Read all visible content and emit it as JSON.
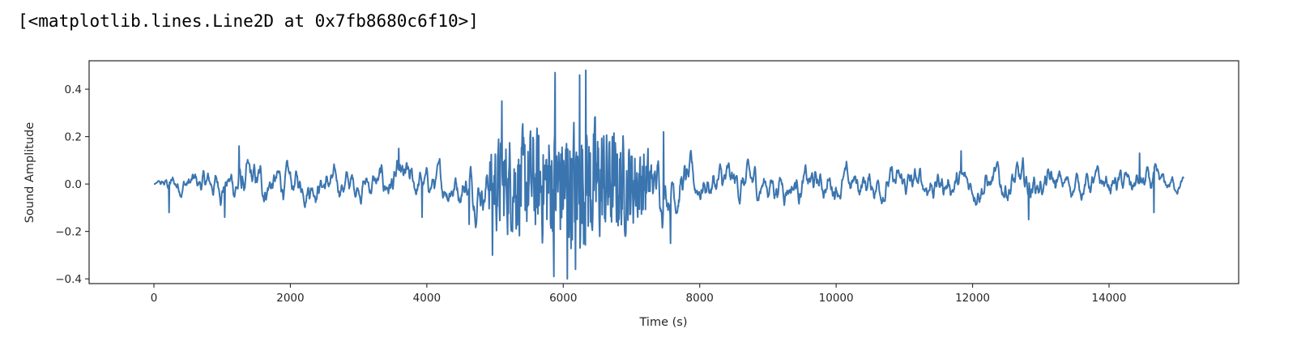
{
  "output": {
    "repr_text": "[<matplotlib.lines.Line2D at 0x7fb8680c6f10>]"
  },
  "chart_data": {
    "type": "line",
    "title": "",
    "xlabel": "Time (s)",
    "ylabel": "Sound Amplitude",
    "xlim": [
      -950,
      15900
    ],
    "ylim": [
      -0.42,
      0.52
    ],
    "xticks": [
      0,
      2000,
      4000,
      6000,
      8000,
      10000,
      12000,
      14000
    ],
    "yticks": [
      0.4,
      0.2,
      0.0,
      -0.2,
      -0.4
    ],
    "ytick_labels": [
      "0.4",
      "0.2",
      "0.0",
      "−0.2",
      "−0.4"
    ],
    "grid": false,
    "legend": "none",
    "colors": {
      "line": "#3b75af",
      "axes": "#262626"
    },
    "series": [
      {
        "x_range": [
          0,
          15100
        ],
        "envelope_x": [
          0,
          200,
          1000,
          1300,
          2000,
          3000,
          3700,
          4000,
          4500,
          4900,
          5000,
          5600,
          6000,
          6400,
          6800,
          7200,
          7600,
          8000,
          9000,
          10000,
          11000,
          12000,
          12800,
          13500,
          14500,
          15100
        ],
        "envelope_y": [
          0.0,
          0.06,
          0.1,
          0.14,
          0.1,
          0.09,
          0.13,
          0.09,
          0.13,
          0.18,
          0.3,
          0.36,
          0.42,
          0.44,
          0.34,
          0.24,
          0.17,
          0.13,
          0.11,
          0.1,
          0.1,
          0.1,
          0.12,
          0.08,
          0.1,
          0.04
        ],
        "peaks": [
          {
            "x": 1250,
            "y": 0.16
          },
          {
            "x": 1040,
            "y": -0.14
          },
          {
            "x": 3590,
            "y": 0.15
          },
          {
            "x": 3930,
            "y": -0.14
          },
          {
            "x": 4620,
            "y": -0.17
          },
          {
            "x": 5100,
            "y": 0.35
          },
          {
            "x": 4960,
            "y": -0.3
          },
          {
            "x": 5880,
            "y": 0.47
          },
          {
            "x": 6330,
            "y": 0.48
          },
          {
            "x": 6240,
            "y": 0.46
          },
          {
            "x": 6060,
            "y": -0.4
          },
          {
            "x": 5860,
            "y": -0.39
          },
          {
            "x": 6180,
            "y": -0.36
          },
          {
            "x": 7470,
            "y": 0.22
          },
          {
            "x": 7570,
            "y": -0.25
          },
          {
            "x": 12820,
            "y": -0.15
          },
          {
            "x": 11830,
            "y": 0.14
          },
          {
            "x": 14450,
            "y": 0.13
          },
          {
            "x": 14660,
            "y": -0.12
          },
          {
            "x": 220,
            "y": -0.12
          }
        ]
      }
    ]
  }
}
